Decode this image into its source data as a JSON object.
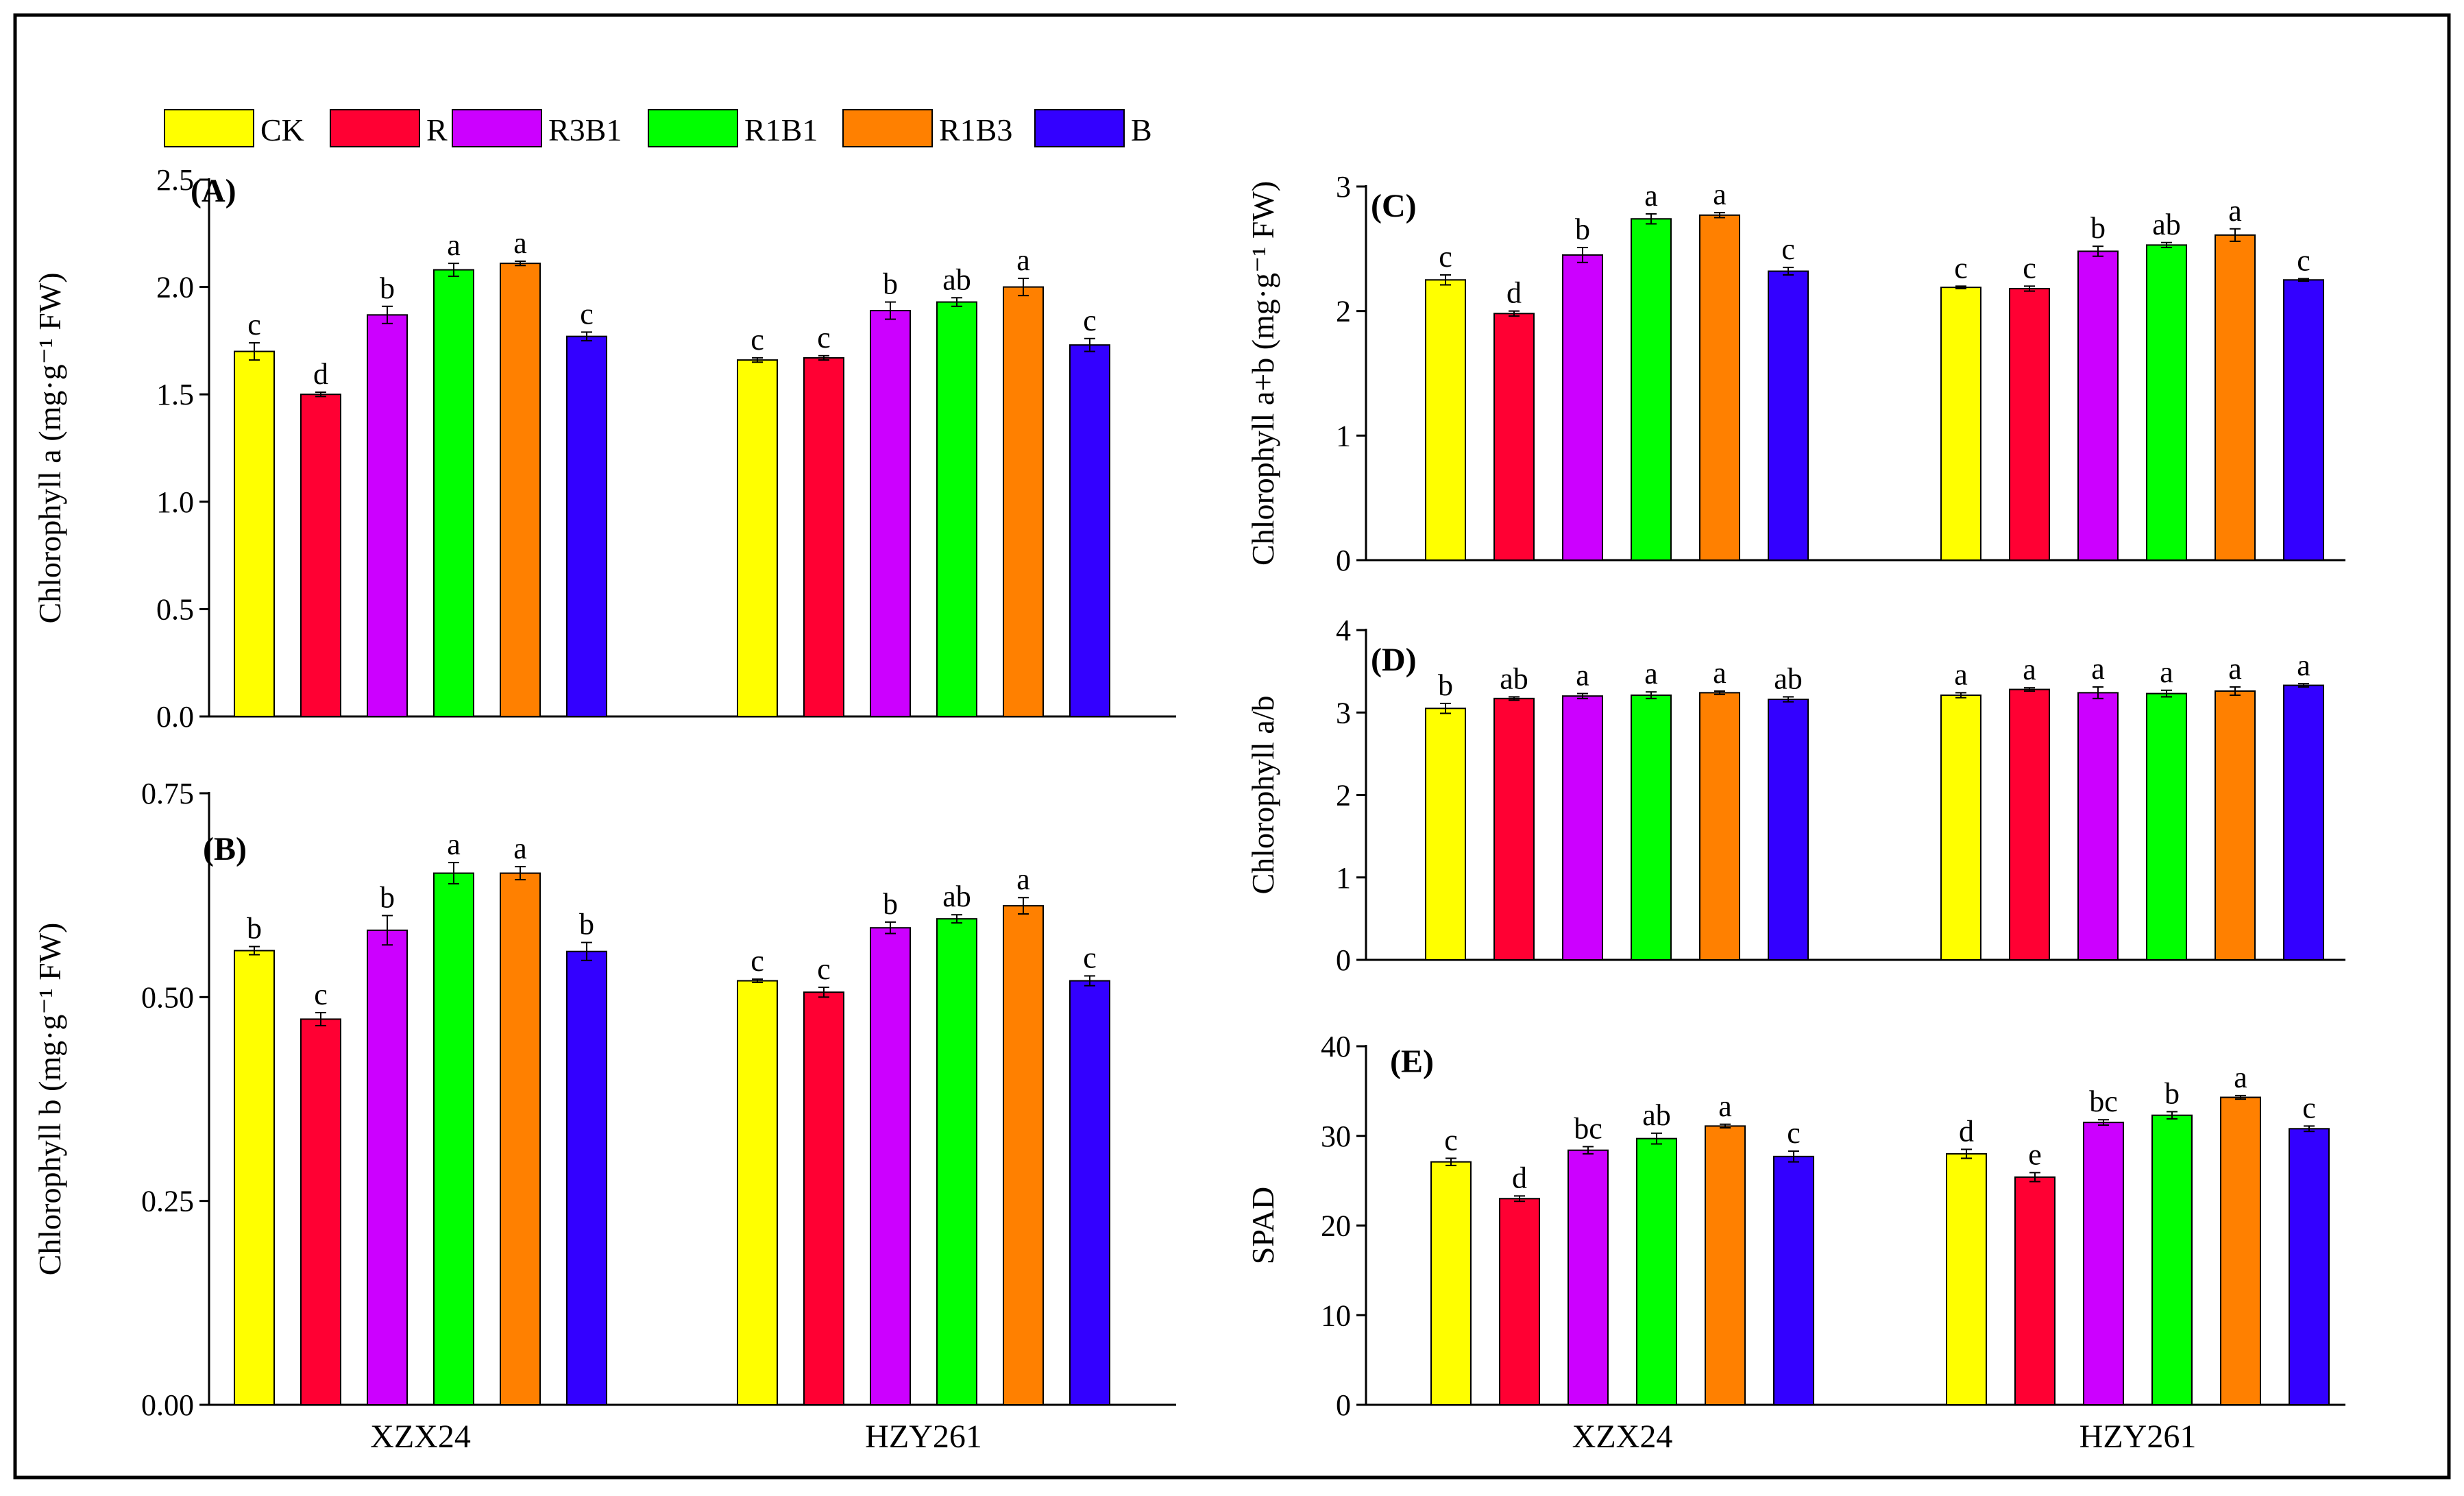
{
  "legend": [
    "CK",
    "R",
    "R3B1",
    "R1B1",
    "R1B3",
    "B"
  ],
  "colors": [
    "#FFFF00",
    "#FF0033",
    "#CC00FF",
    "#00FF00",
    "#FF8000",
    "#3300FF"
  ],
  "chart_data": [
    {
      "type": "bar",
      "panel": "(A)",
      "ylabel": "Chlorophyll a  (mg·g⁻¹ FW)",
      "ylim": [
        0,
        2.5
      ],
      "yticks": [
        "0.0",
        "0.5",
        "1.0",
        "1.5",
        "2.0",
        "2.5"
      ],
      "categories": [
        "XZX24",
        "HZY261"
      ],
      "series": [
        {
          "name": "CK",
          "values": [
            1.7,
            1.66
          ],
          "errors": [
            0.04,
            0.01
          ],
          "letters": [
            "c",
            "c"
          ]
        },
        {
          "name": "R",
          "values": [
            1.5,
            1.67
          ],
          "errors": [
            0.01,
            0.01
          ],
          "letters": [
            "d",
            "c"
          ]
        },
        {
          "name": "R3B1",
          "values": [
            1.87,
            1.89
          ],
          "errors": [
            0.04,
            0.04
          ],
          "letters": [
            "b",
            "b"
          ]
        },
        {
          "name": "R1B1",
          "values": [
            2.08,
            1.93
          ],
          "errors": [
            0.03,
            0.02
          ],
          "letters": [
            "a",
            "ab"
          ]
        },
        {
          "name": "R1B3",
          "values": [
            2.11,
            2.0
          ],
          "errors": [
            0.01,
            0.04
          ],
          "letters": [
            "a",
            "a"
          ]
        },
        {
          "name": "B",
          "values": [
            1.77,
            1.73
          ],
          "errors": [
            0.02,
            0.03
          ],
          "letters": [
            "c",
            "c"
          ]
        }
      ]
    },
    {
      "type": "bar",
      "panel": "(B)",
      "ylabel": "Chlorophyll b  (mg·g⁻¹ FW)",
      "ylim": [
        0,
        0.75
      ],
      "yticks": [
        "0.00",
        "0.25",
        "0.50",
        "0.75"
      ],
      "categories": [
        "XZX24",
        "HZY261"
      ],
      "series": [
        {
          "name": "CK",
          "values": [
            0.557,
            0.52
          ],
          "errors": [
            0.005,
            0.002
          ],
          "letters": [
            "b",
            "c"
          ]
        },
        {
          "name": "R",
          "values": [
            0.473,
            0.506
          ],
          "errors": [
            0.008,
            0.006
          ],
          "letters": [
            "c",
            "c"
          ]
        },
        {
          "name": "R3B1",
          "values": [
            0.582,
            0.585
          ],
          "errors": [
            0.018,
            0.007
          ],
          "letters": [
            "b",
            "b"
          ]
        },
        {
          "name": "R1B1",
          "values": [
            0.652,
            0.596
          ],
          "errors": [
            0.013,
            0.005
          ],
          "letters": [
            "a",
            "ab"
          ]
        },
        {
          "name": "R1B3",
          "values": [
            0.652,
            0.612
          ],
          "errors": [
            0.008,
            0.01
          ],
          "letters": [
            "a",
            "a"
          ]
        },
        {
          "name": "B",
          "values": [
            0.556,
            0.52
          ],
          "errors": [
            0.011,
            0.006
          ],
          "letters": [
            "b",
            "c"
          ]
        }
      ]
    },
    {
      "type": "bar",
      "panel": "(C)",
      "ylabel": "Chlorophyll a+b (mg·g⁻¹ FW)",
      "ylim": [
        0,
        3
      ],
      "yticks": [
        "0",
        "1",
        "2",
        "3"
      ],
      "categories": [
        "XZX24",
        "HZY261"
      ],
      "series": [
        {
          "name": "CK",
          "values": [
            2.25,
            2.19
          ],
          "errors": [
            0.04,
            0.01
          ],
          "letters": [
            "c",
            "c"
          ]
        },
        {
          "name": "R",
          "values": [
            1.98,
            2.18
          ],
          "errors": [
            0.02,
            0.02
          ],
          "letters": [
            "d",
            "c"
          ]
        },
        {
          "name": "R3B1",
          "values": [
            2.45,
            2.48
          ],
          "errors": [
            0.06,
            0.04
          ],
          "letters": [
            "b",
            "b"
          ]
        },
        {
          "name": "R1B1",
          "values": [
            2.74,
            2.53
          ],
          "errors": [
            0.04,
            0.02
          ],
          "letters": [
            "a",
            "ab"
          ]
        },
        {
          "name": "R1B3",
          "values": [
            2.77,
            2.61
          ],
          "errors": [
            0.02,
            0.05
          ],
          "letters": [
            "a",
            "a"
          ]
        },
        {
          "name": "B",
          "values": [
            2.32,
            2.25
          ],
          "errors": [
            0.03,
            0.01
          ],
          "letters": [
            "c",
            "c"
          ]
        }
      ]
    },
    {
      "type": "bar",
      "panel": "(D)",
      "ylabel": "Chlorophyll a/b",
      "ylim": [
        0,
        4
      ],
      "yticks": [
        "0",
        "1",
        "2",
        "3",
        "4"
      ],
      "categories": [
        "XZX24",
        "HZY261"
      ],
      "series": [
        {
          "name": "CK",
          "values": [
            3.05,
            3.21
          ],
          "errors": [
            0.06,
            0.03
          ],
          "letters": [
            "b",
            "a"
          ]
        },
        {
          "name": "R",
          "values": [
            3.17,
            3.28
          ],
          "errors": [
            0.02,
            0.02
          ],
          "letters": [
            "ab",
            "a"
          ]
        },
        {
          "name": "R3B1",
          "values": [
            3.2,
            3.24
          ],
          "errors": [
            0.03,
            0.07
          ],
          "letters": [
            "a",
            "a"
          ]
        },
        {
          "name": "R1B1",
          "values": [
            3.21,
            3.23
          ],
          "errors": [
            0.04,
            0.04
          ],
          "letters": [
            "a",
            "a"
          ]
        },
        {
          "name": "R1B3",
          "values": [
            3.24,
            3.26
          ],
          "errors": [
            0.02,
            0.05
          ],
          "letters": [
            "a",
            "a"
          ]
        },
        {
          "name": "B",
          "values": [
            3.16,
            3.33
          ],
          "errors": [
            0.03,
            0.02
          ],
          "letters": [
            "ab",
            "a"
          ]
        }
      ]
    },
    {
      "type": "bar",
      "panel": "(E)",
      "ylabel": "SPAD",
      "ylim": [
        0,
        40
      ],
      "yticks": [
        "0",
        "10",
        "20",
        "30",
        "40"
      ],
      "categories": [
        "XZX24",
        "HZY261"
      ],
      "series": [
        {
          "name": "CK",
          "values": [
            27.1,
            28.0
          ],
          "errors": [
            0.4,
            0.5
          ],
          "letters": [
            "c",
            "d"
          ]
        },
        {
          "name": "R",
          "values": [
            23.0,
            25.4
          ],
          "errors": [
            0.3,
            0.5
          ],
          "letters": [
            "d",
            "e"
          ]
        },
        {
          "name": "R3B1",
          "values": [
            28.4,
            31.5
          ],
          "errors": [
            0.4,
            0.3
          ],
          "letters": [
            "bc",
            "bc"
          ]
        },
        {
          "name": "R1B1",
          "values": [
            29.7,
            32.3
          ],
          "errors": [
            0.6,
            0.4
          ],
          "letters": [
            "ab",
            "b"
          ]
        },
        {
          "name": "R1B3",
          "values": [
            31.1,
            34.3
          ],
          "errors": [
            0.2,
            0.2
          ],
          "letters": [
            "a",
            "a"
          ]
        },
        {
          "name": "B",
          "values": [
            27.7,
            30.8
          ],
          "errors": [
            0.6,
            0.3
          ],
          "letters": [
            "c",
            "c"
          ]
        }
      ]
    }
  ]
}
